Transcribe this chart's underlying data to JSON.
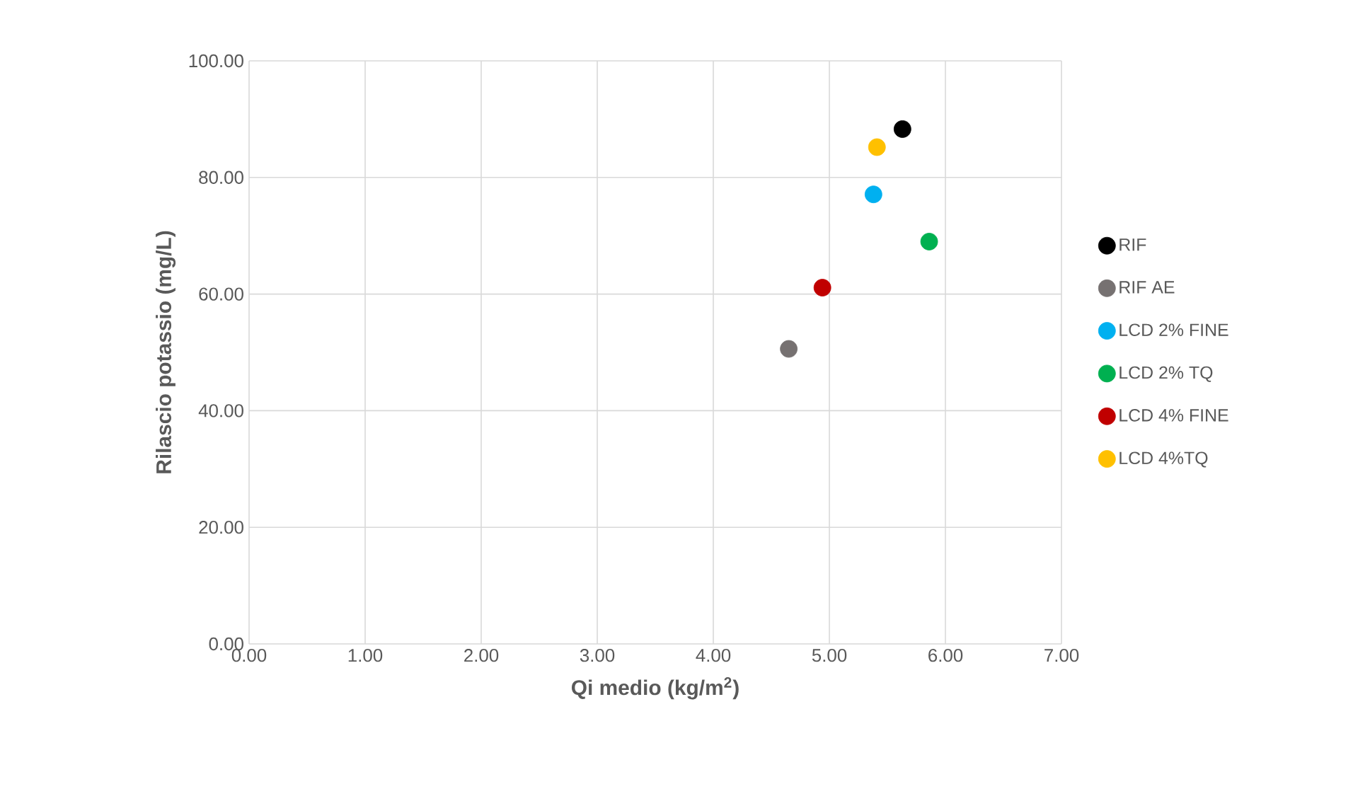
{
  "chart_data": {
    "type": "scatter",
    "xlabel": "Qi medio (kg/m$^{2}$)",
    "ylabel": "Rilascio potassio (mg/L)",
    "xlim": [
      0,
      7
    ],
    "ylim": [
      0,
      100
    ],
    "xticks": [
      {
        "value": 0,
        "label": "0.00"
      },
      {
        "value": 1,
        "label": "1.00"
      },
      {
        "value": 2,
        "label": "2.00"
      },
      {
        "value": 3,
        "label": "3.00"
      },
      {
        "value": 4,
        "label": "4.00"
      },
      {
        "value": 5,
        "label": "5.00"
      },
      {
        "value": 6,
        "label": "6.00"
      },
      {
        "value": 7,
        "label": "7.00"
      }
    ],
    "yticks": [
      {
        "value": 0,
        "label": "0.00"
      },
      {
        "value": 20,
        "label": "20.00"
      },
      {
        "value": 40,
        "label": "40.00"
      },
      {
        "value": 60,
        "label": "60.00"
      },
      {
        "value": 80,
        "label": "80.00"
      },
      {
        "value": 100,
        "label": "100.00"
      }
    ],
    "grid": true,
    "legend": "right",
    "series": [
      {
        "name": "RIF",
        "color": "#000000",
        "x": [
          5.63
        ],
        "values": [
          88.3
        ]
      },
      {
        "name": "RIF AE",
        "color": "#767171",
        "x": [
          4.65
        ],
        "values": [
          50.6
        ]
      },
      {
        "name": "LCD 2% FINE",
        "color": "#00b0f0",
        "x": [
          5.38
        ],
        "values": [
          77.1
        ]
      },
      {
        "name": "LCD 2% TQ",
        "color": "#00b050",
        "x": [
          5.86
        ],
        "values": [
          69.0
        ]
      },
      {
        "name": "LCD 4% FINE",
        "color": "#c00000",
        "x": [
          4.94
        ],
        "values": [
          61.1
        ]
      },
      {
        "name": "LCD 4%TQ",
        "color": "#ffc000",
        "x": [
          5.41
        ],
        "values": [
          85.2
        ]
      }
    ]
  }
}
